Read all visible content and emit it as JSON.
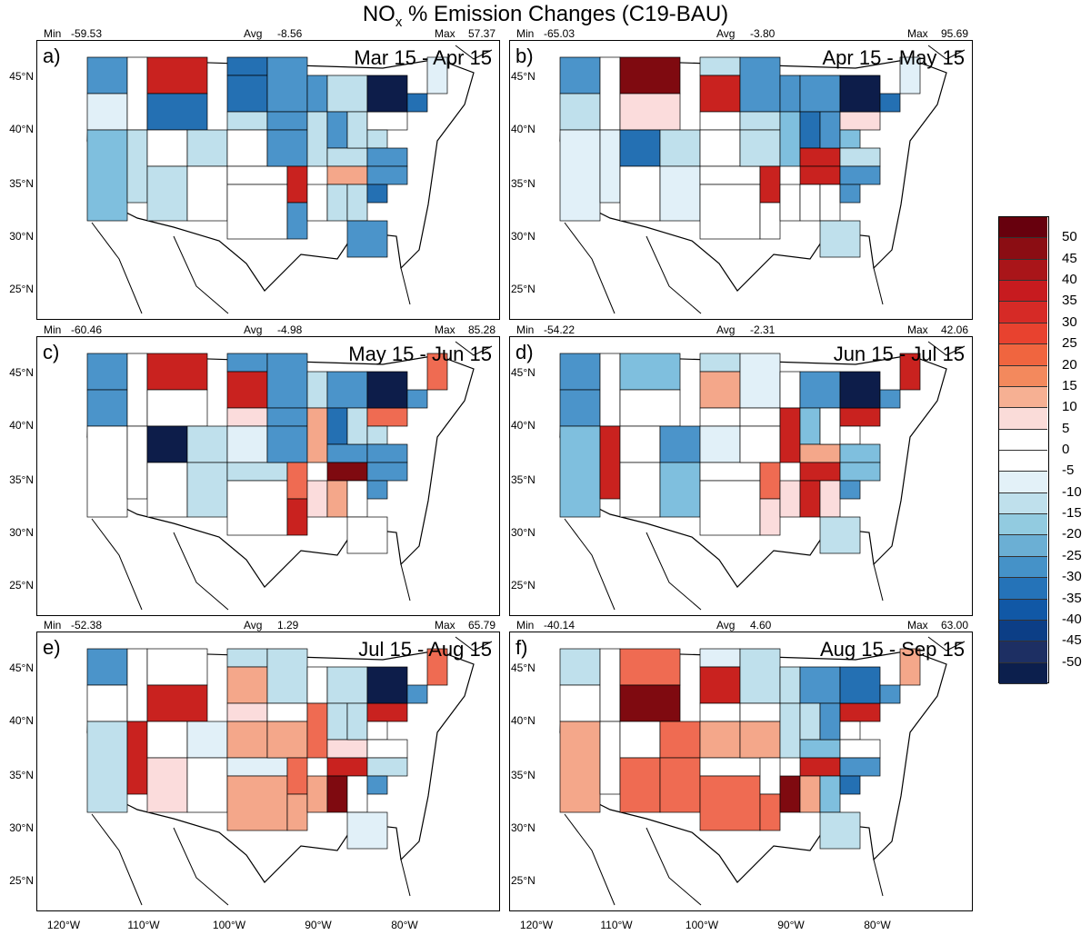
{
  "title": {
    "main": "NO",
    "sub": "x",
    "rest": " % Emission Changes (C19-BAU)"
  },
  "panels": [
    {
      "label": "a)",
      "date": "Mar 15 - Apr 15",
      "min_label": "Min",
      "min": "-59.53",
      "avg_label": "Avg",
      "avg": "-8.56",
      "max_label": "Max",
      "max": "57.37"
    },
    {
      "label": "b)",
      "date": "Apr 15 - May 15",
      "min_label": "Min",
      "min": "-65.03",
      "avg_label": "Avg",
      "avg": "-3.80",
      "max_label": "Max",
      "max": "95.69"
    },
    {
      "label": "c)",
      "date": "May 15 - Jun 15",
      "min_label": "Min",
      "min": "-60.46",
      "avg_label": "Avg",
      "avg": "-4.98",
      "max_label": "Max",
      "max": "85.28"
    },
    {
      "label": "d)",
      "date": "Jun 15 - Jul 15",
      "min_label": "Min",
      "min": "-54.22",
      "avg_label": "Avg",
      "avg": "-2.31",
      "max_label": "Max",
      "max": "42.06"
    },
    {
      "label": "e)",
      "date": "Jul 15 - Aug 15",
      "min_label": "Min",
      "min": "-52.38",
      "avg_label": "Avg",
      "avg": "1.29",
      "max_label": "Max",
      "max": "65.79"
    },
    {
      "label": "f)",
      "date": "Aug 15 - Sep 15",
      "min_label": "Min",
      "min": "-40.14",
      "avg_label": "Avg",
      "avg": "4.60",
      "max_label": "Max",
      "max": "63.00"
    }
  ],
  "lat_labels": [
    "45°N",
    "40°N",
    "35°N",
    "30°N",
    "25°N"
  ],
  "lon_labels": [
    "120°W",
    "110°W",
    "100°W",
    "90°W",
    "80°W"
  ],
  "colorbar": {
    "labels": [
      "50",
      "45",
      "40",
      "35",
      "30",
      "25",
      "20",
      "15",
      "10",
      "5",
      "0",
      "-5",
      "-10",
      "-15",
      "-20",
      "-25",
      "-30",
      "-35",
      "-40",
      "-45",
      "-50"
    ],
    "colors": [
      "#67000d",
      "#8b0d13",
      "#a91519",
      "#c71b1f",
      "#d62a26",
      "#e8422f",
      "#f0653f",
      "#f3895d",
      "#f6b093",
      "#fadcd9",
      "#ffffff",
      "#ffffff",
      "#e3f1f8",
      "#bfe0ec",
      "#92cbe0",
      "#6bafd4",
      "#4592c8",
      "#2573b8",
      "#1158a6",
      "#0c3e86",
      "#1d2f63",
      "#0c1f4d"
    ]
  },
  "region_colors": {
    "dk_red": "#7f0a10",
    "red": "#c9221f",
    "lt_red": "#ef6b52",
    "salmon": "#f4a78a",
    "pink": "#fbdcdc",
    "white": "#ffffff",
    "vlt_blue": "#e1f0f8",
    "lt_blue": "#bfe0ec",
    "mid_blue": "#7fbfde",
    "blue": "#4b94ca",
    "dk_blue": "#2470b3",
    "navy": "#0d1d4a"
  }
}
